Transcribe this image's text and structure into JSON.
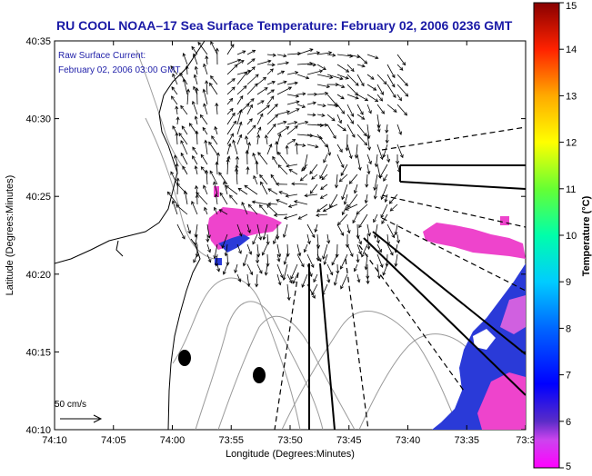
{
  "title": "RU COOL  NOAA–17  Sea Surface Temperature:  February 02, 2006 0236 GMT",
  "annotation_line1": "Raw Surface Current:",
  "annotation_line2": "February 02, 2006 03:00 GMT",
  "scale_label": "50 cm/s",
  "colors": {
    "title": "#1a1aa6",
    "annotation": "#2222aa",
    "land_contour": "#888888",
    "frame": "#000000",
    "sst_warm": "#ee44cc",
    "sst_cold": "#2a3ad8"
  },
  "chart_data": {
    "type": "map",
    "title": "RU COOL  NOAA–17  Sea Surface Temperature:  February 02, 2006 0236 GMT",
    "xlabel": "Longitude (Degrees:Minutes)",
    "ylabel": "Latitude (Degrees:Minutes)",
    "x_ticks": [
      "74:10",
      "74:05",
      "74:00",
      "73:55",
      "73:50",
      "73:45",
      "73:40",
      "73:35",
      "73:3"
    ],
    "y_ticks": [
      "40:10",
      "40:15",
      "40:20",
      "40:25",
      "40:30",
      "40:35"
    ],
    "colorbar": {
      "label": "Temperature (°C)",
      "range": [
        5,
        15
      ],
      "ticks": [
        "5",
        "6",
        "7",
        "8",
        "9",
        "10",
        "11",
        "12",
        "13",
        "14",
        "15"
      ],
      "colormap": "jet"
    },
    "vector_scale_cm_s": 50,
    "sst_patches_degC": [
      5.5,
      6.5
    ]
  }
}
